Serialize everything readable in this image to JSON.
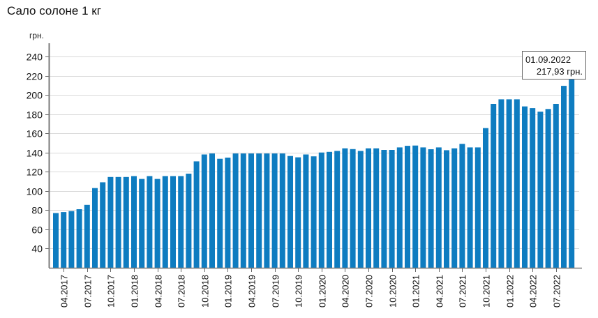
{
  "chart_data": {
    "type": "bar",
    "title": "Сало солоне 1 кг",
    "xlabel": "",
    "ylabel": "грн.",
    "ylim": [
      20,
      250
    ],
    "yticks": [
      40,
      60,
      80,
      100,
      120,
      140,
      160,
      180,
      200,
      220,
      240
    ],
    "grid": true,
    "legend": null,
    "bar_color": "#0e7cc0",
    "xtick_labels": [
      "04.2017",
      "07.2017",
      "10.2017",
      "01.2018",
      "04.2018",
      "07.2018",
      "10.2018",
      "01.2019",
      "04.2019",
      "07.2019",
      "10.2019",
      "01.2020",
      "04.2020",
      "07.2020",
      "10.2020",
      "01.2021",
      "04.2021",
      "07.2021",
      "10.2021",
      "01.2022",
      "04.2022",
      "07.2022"
    ],
    "categories": [
      "03.2017",
      "04.2017",
      "05.2017",
      "06.2017",
      "07.2017",
      "08.2017",
      "09.2017",
      "10.2017",
      "11.2017",
      "12.2017",
      "01.2018",
      "02.2018",
      "03.2018",
      "04.2018",
      "05.2018",
      "06.2018",
      "07.2018",
      "08.2018",
      "09.2018",
      "10.2018",
      "11.2018",
      "12.2018",
      "01.2019",
      "02.2019",
      "03.2019",
      "04.2019",
      "05.2019",
      "06.2019",
      "07.2019",
      "08.2019",
      "09.2019",
      "10.2019",
      "11.2019",
      "12.2019",
      "01.2020",
      "02.2020",
      "03.2020",
      "04.2020",
      "05.2020",
      "06.2020",
      "07.2020",
      "08.2020",
      "09.2020",
      "10.2020",
      "11.2020",
      "12.2020",
      "01.2021",
      "02.2021",
      "03.2021",
      "04.2021",
      "05.2021",
      "06.2021",
      "07.2021",
      "08.2021",
      "09.2021",
      "10.2021",
      "11.2021",
      "12.2021",
      "01.2022",
      "02.2022",
      "03.2022",
      "04.2022",
      "05.2022",
      "06.2022",
      "07.2022",
      "08.2022",
      "09.2022"
    ],
    "values": [
      77,
      78,
      79,
      81,
      85.5,
      103,
      109,
      114.5,
      114.5,
      114.5,
      115.5,
      112.5,
      115.5,
      112.5,
      115.5,
      115.5,
      115.5,
      118,
      130.8,
      138,
      139,
      133.5,
      134.7,
      139,
      139,
      139,
      139,
      139,
      139,
      139,
      136.4,
      135,
      138,
      136,
      140,
      140.7,
      141.7,
      144.4,
      143.6,
      141.7,
      144.4,
      144.4,
      142.7,
      142.7,
      145.3,
      147,
      147.3,
      145.3,
      143.4,
      145.3,
      142.4,
      144.4,
      149,
      145.3,
      145.3,
      165.4,
      190.6,
      195.4,
      195.4,
      195.4,
      188,
      186.2,
      182.6,
      185.3,
      190.6,
      209.4,
      217.93
    ],
    "annotations": [
      {
        "type": "tooltip",
        "date": "01.09.2022",
        "value_text": "217,93 грн."
      }
    ]
  },
  "header": {
    "title": "Сало солоне 1 кг"
  },
  "axis": {
    "y_unit": "грн."
  },
  "tooltip": {
    "date": "01.09.2022",
    "value": "217,93 грн."
  }
}
